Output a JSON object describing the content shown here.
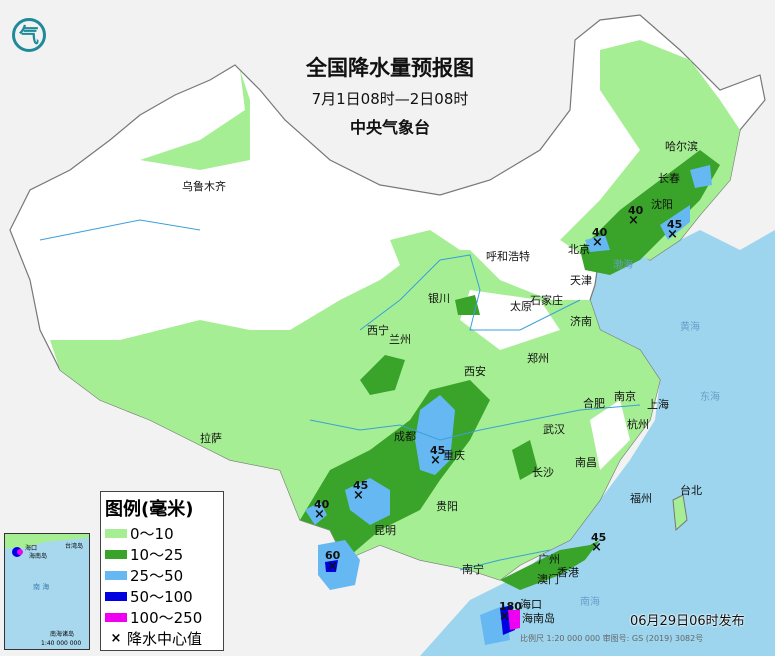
{
  "title": "全国降水量预报图",
  "period": "7月1日08时—2日08时",
  "agency": "中央气象台",
  "logo_text": "气",
  "issued": "06月29日06时发布",
  "scale_line": "比例尺 1:20 000 000    审图号: GS (2019) 3082号",
  "legend": {
    "title": "图例(毫米)",
    "items": [
      {
        "label": "0～10",
        "color": "#a6ee94"
      },
      {
        "label": "10～25",
        "color": "#3aa32a"
      },
      {
        "label": "25～50",
        "color": "#66b8f2"
      },
      {
        "label": "50～100",
        "color": "#0000e0"
      },
      {
        "label": "100～250",
        "color": "#f000f0"
      }
    ],
    "center_label": "降水中心值"
  },
  "inset": {
    "labels": [
      "海口",
      "海南岛",
      "南 海",
      "台湾岛",
      "南海诸岛",
      "1:40 000 000"
    ]
  },
  "cities": [
    "乌鲁木齐",
    "哈尔滨",
    "长春",
    "沈阳",
    "北京",
    "天津",
    "呼和浩特",
    "石家庄",
    "太原",
    "济南",
    "银川",
    "西宁",
    "兰州",
    "郑州",
    "西安",
    "南京",
    "合肥",
    "上海",
    "杭州",
    "武汉",
    "成都",
    "重庆",
    "长沙",
    "南昌",
    "福州",
    "台北",
    "贵阳",
    "昆明",
    "拉萨",
    "南宁",
    "广州",
    "澳门",
    "香港",
    "海口",
    "海南岛"
  ],
  "sea_labels": [
    "渤海",
    "黄海",
    "东海",
    "南海"
  ],
  "rain_centers": [
    "40",
    "40",
    "45",
    "45",
    "45",
    "40",
    "60",
    "45",
    "180"
  ]
}
